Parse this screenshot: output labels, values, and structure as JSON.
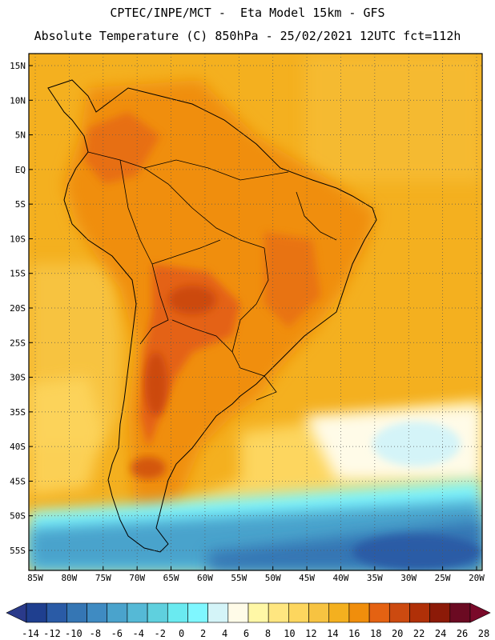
{
  "title": {
    "line1": "CPTEC/INPE/MCT -  Eta Model 15km - GFS",
    "line2": "Absolute Temperature (C) 850hPa - 25/02/2021 12UTC fct=112h"
  },
  "map": {
    "lon_labels": [
      "85W",
      "80W",
      "75W",
      "70W",
      "65W",
      "60W",
      "55W",
      "50W",
      "45W",
      "40W",
      "35W",
      "30W",
      "25W",
      "20W"
    ],
    "lat_labels": [
      "15N",
      "10N",
      "5N",
      "EQ",
      "5S",
      "10S",
      "15S",
      "20S",
      "25S",
      "30S",
      "35S",
      "40S",
      "45S",
      "50S",
      "55S"
    ],
    "lon_range": [
      -85,
      -20
    ],
    "lat_range": [
      17,
      -58
    ]
  },
  "colorbar": {
    "tick_labels": [
      "-14",
      "-12",
      "-10",
      "-8",
      "-6",
      "-4",
      "-2",
      "0",
      "2",
      "4",
      "6",
      "8",
      "10",
      "12",
      "14",
      "16",
      "18",
      "20",
      "22",
      "24",
      "26",
      "28"
    ],
    "colors": [
      "#1f3f8f",
      "#2a5ba6",
      "#3576b4",
      "#3f8bc2",
      "#4aa3cc",
      "#55b9d6",
      "#5fd0de",
      "#6aeaf0",
      "#7ff7ff",
      "#d4f4f8",
      "#fffbe8",
      "#fff7a6",
      "#ffe680",
      "#fdd65e",
      "#f7c341",
      "#f4b01f",
      "#f08e0c",
      "#e46212",
      "#cc4a10",
      "#b03008",
      "#8c1a08",
      "#6b0a22"
    ]
  }
}
